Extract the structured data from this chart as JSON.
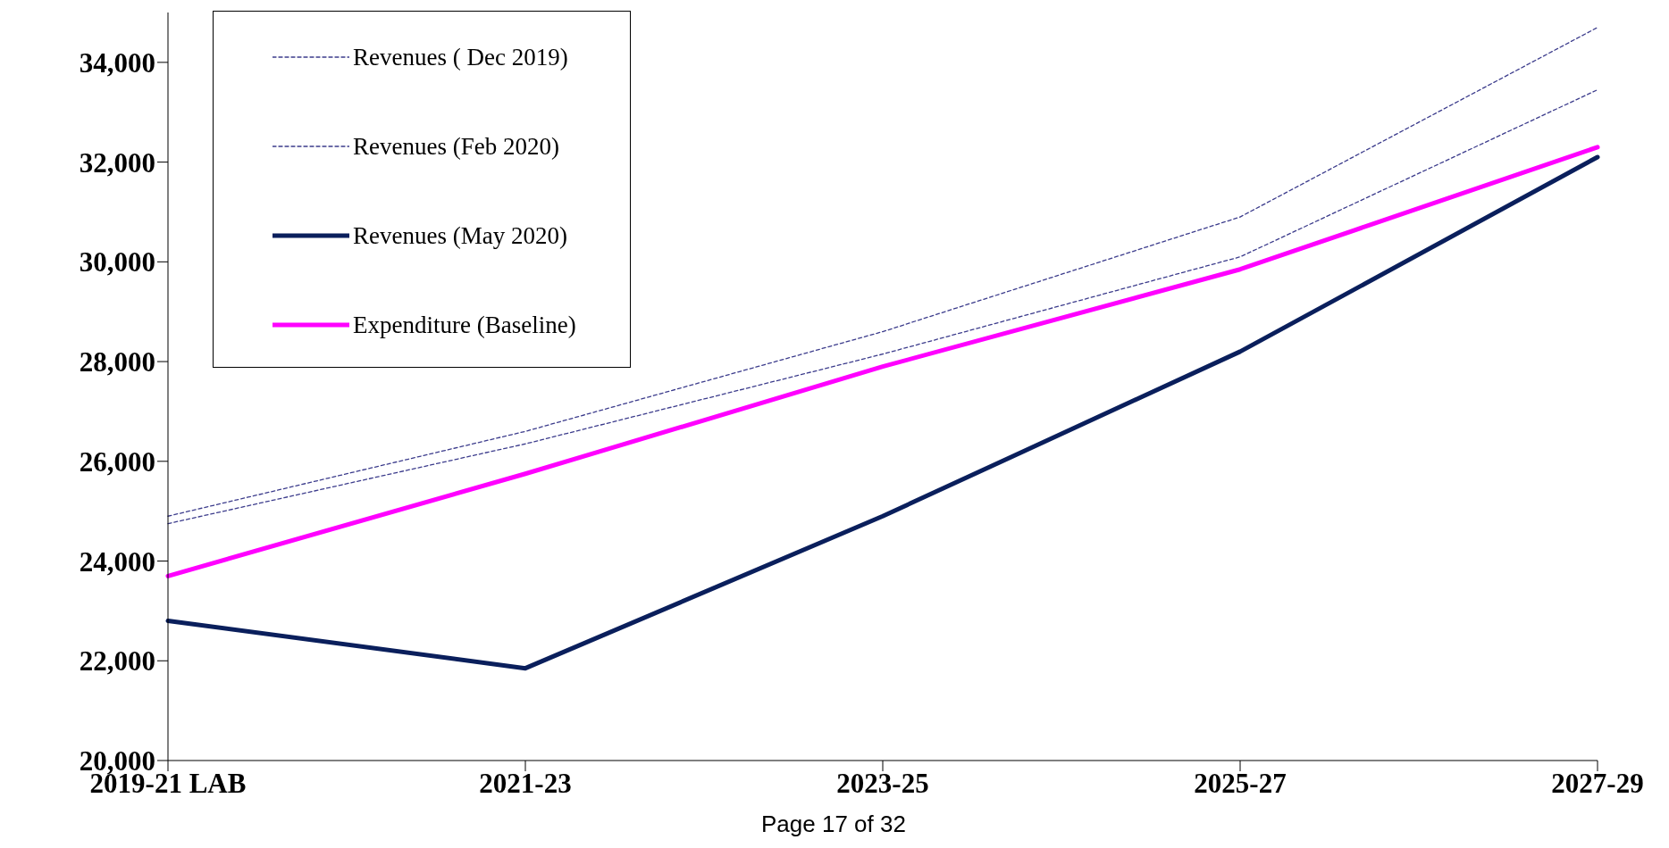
{
  "chart_data": {
    "type": "line",
    "categories": [
      "2019-21 LAB",
      "2021-23",
      "2023-25",
      "2025-27",
      "2027-29"
    ],
    "series": [
      {
        "name": "Revenues ( Dec 2019)",
        "color": "#3c3c8c",
        "line_style": "dashed",
        "values": [
          24900,
          26600,
          28600,
          30900,
          34700
        ]
      },
      {
        "name": "Revenues (Feb 2020)",
        "color": "#3c3c8c",
        "line_style": "dashed",
        "values": [
          24750,
          26350,
          28150,
          30100,
          33450
        ]
      },
      {
        "name": "Revenues (May 2020)",
        "color": "#0a1f5c",
        "line_style": "solid",
        "values": [
          22800,
          21850,
          24900,
          28200,
          32100
        ]
      },
      {
        "name": "Expenditure (Baseline)",
        "color": "#ff00ff",
        "line_style": "solid",
        "values": [
          23700,
          25750,
          27900,
          29850,
          32300
        ]
      }
    ],
    "ylim": [
      20000,
      35000
    ],
    "yticks": [
      {
        "value": 20000,
        "label": "20,000"
      },
      {
        "value": 22000,
        "label": "22,000"
      },
      {
        "value": 24000,
        "label": "24,000"
      },
      {
        "value": 26000,
        "label": "26,000"
      },
      {
        "value": 28000,
        "label": "28,000"
      },
      {
        "value": 30000,
        "label": "30,000"
      },
      {
        "value": 32000,
        "label": "32,000"
      },
      {
        "value": 34000,
        "label": "34,000"
      }
    ],
    "grid": false,
    "legend": "top left",
    "marker": "none",
    "annotations": [
      "Page 17 of 32"
    ]
  }
}
